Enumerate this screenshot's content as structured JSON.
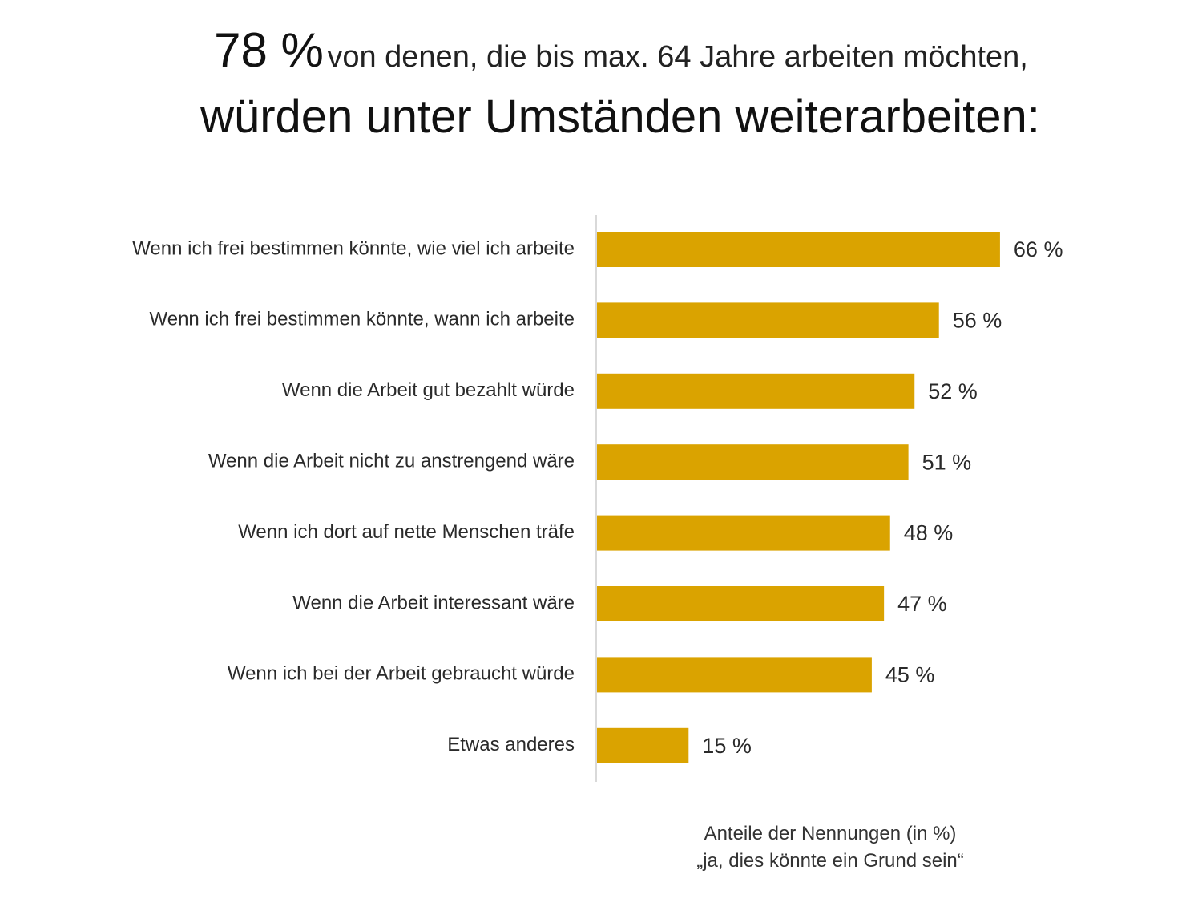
{
  "title": {
    "highlight": "78 %",
    "line1_rest": "von denen, die bis max. 64 Jahre arbeiten möchten,",
    "line2": "würden unter Umständen weiterarbeiten:"
  },
  "footnote": {
    "line1": "Anteile der Nennungen (in %)",
    "line2": "„ja, dies könnte ein Grund sein“"
  },
  "colors": {
    "bar": "#DAA300",
    "axis": "#d9d9d9"
  },
  "chart_data": {
    "type": "bar",
    "orientation": "horizontal",
    "title": "78 % von denen, die bis max. 64 Jahre arbeiten möchten, würden unter Umständen weiterarbeiten:",
    "xlabel": "Anteile der Nennungen (in %) „ja, dies könnte ein Grund sein“",
    "ylabel": "",
    "xlim": [
      0,
      100
    ],
    "grid": false,
    "legend": "none",
    "categories": [
      "Wenn ich frei bestimmen könnte, wie viel ich arbeite",
      "Wenn ich frei bestimmen könnte, wann ich arbeite",
      "Wenn die Arbeit gut bezahlt würde",
      "Wenn die Arbeit nicht zu anstrengend wäre",
      "Wenn ich dort auf nette Menschen träfe",
      "Wenn die Arbeit interessant wäre",
      "Wenn ich bei der Arbeit gebraucht würde",
      "Etwas anderes"
    ],
    "values": [
      66,
      56,
      52,
      51,
      48,
      47,
      45,
      15
    ],
    "value_labels": [
      "66 %",
      "56 %",
      "52 %",
      "51 %",
      "48 %",
      "47 %",
      "45 %",
      "15 %"
    ]
  }
}
